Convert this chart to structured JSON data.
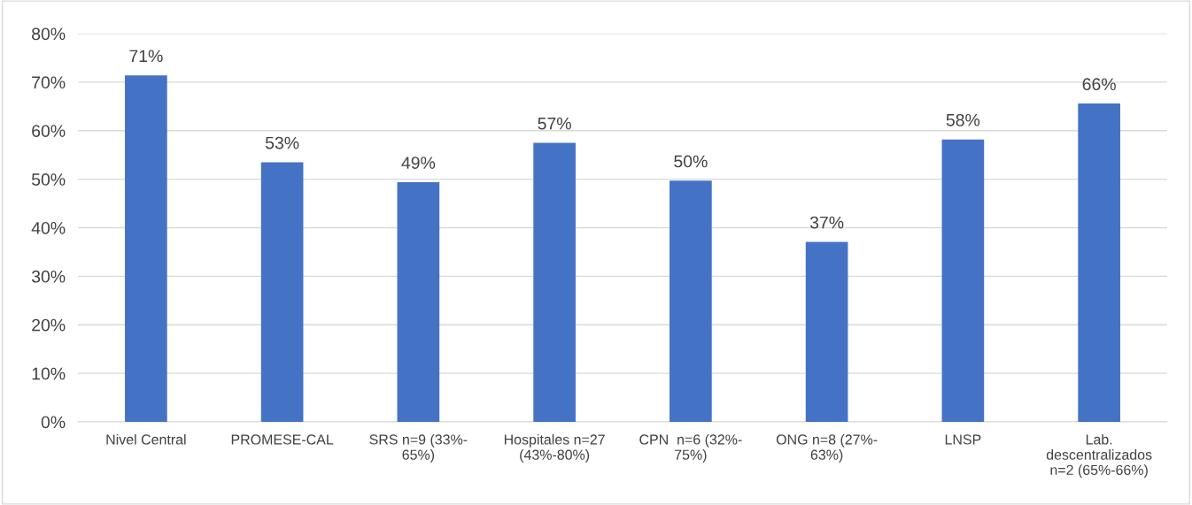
{
  "chart_data": {
    "type": "bar",
    "categories": [
      "Nivel Central",
      "PROMESE-CAL",
      "SRS n=9 (33%-\n65%)",
      "Hospitales n=27\n(43%-80%)",
      "CPN  n=6 (32%-\n75%)",
      "ONG n=8 (27%-\n63%)",
      "LNSP",
      "Lab.\ndescentralizados\nn=2 (65%-66%)"
    ],
    "values": [
      71.4,
      53.5,
      49.4,
      57.5,
      49.7,
      37.1,
      58.2,
      65.6
    ],
    "value_labels": [
      "71%",
      "53%",
      "49%",
      "57%",
      "50%",
      "37%",
      "58%",
      "66%"
    ],
    "color": "#4472c4",
    "ylim": [
      0,
      80
    ],
    "yticks": [
      {
        "value": 0,
        "label": "0%"
      },
      {
        "value": 10,
        "label": "10%"
      },
      {
        "value": 20,
        "label": "20%"
      },
      {
        "value": 30,
        "label": "30%"
      },
      {
        "value": 40,
        "label": "40%"
      },
      {
        "value": 50,
        "label": "50%"
      },
      {
        "value": 60,
        "label": "60%"
      },
      {
        "value": 70,
        "label": "70%"
      },
      {
        "value": 80,
        "label": "80%"
      }
    ],
    "grid": "y"
  }
}
